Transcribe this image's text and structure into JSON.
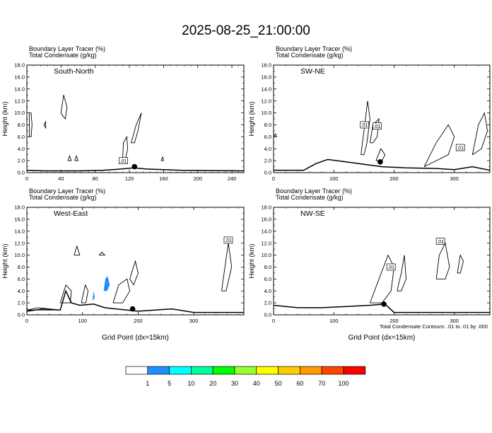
{
  "title": "2025-08-25_21:00:00",
  "footnote": "Total Condensate Contours: .01 to .01 by .000",
  "colorbar": {
    "colors": [
      "#ffffff",
      "#1e90ff",
      "#00ffff",
      "#00ff99",
      "#00ff00",
      "#99ff33",
      "#ffff00",
      "#ffcc00",
      "#ff9900",
      "#ff4500",
      "#ff0000"
    ],
    "labels": [
      "1",
      "5",
      "10",
      "20",
      "30",
      "40",
      "50",
      "60",
      "70",
      "100"
    ]
  },
  "chart_data": [
    {
      "type": "contour",
      "header1": "Boundary Layer Tracer   (%)",
      "header2": "Total Condensate   (g/kg)",
      "label": "South-North",
      "ylabel": "Height (km)",
      "xlabel": "",
      "xlim": [
        0,
        254
      ],
      "ylim": [
        0,
        18
      ],
      "xticks": [
        "0",
        "40",
        "80",
        "120",
        "160",
        "200",
        "240"
      ],
      "yticks": [
        "0.0",
        "2.0",
        "4.0",
        "6.0",
        "8.0",
        "10.0",
        "12.0",
        "14.0",
        "16.0",
        "18.0"
      ],
      "contour_labels": [
        {
          "text": ".01",
          "x": 113,
          "y": 2.0
        }
      ],
      "marker": {
        "x": 126,
        "y": 1.0
      },
      "terrain": [
        [
          0,
          0.4
        ],
        [
          20,
          0.3
        ],
        [
          60,
          0.3
        ],
        [
          90,
          0.4
        ],
        [
          110,
          0.6
        ],
        [
          125,
          0.8
        ],
        [
          140,
          0.6
        ],
        [
          180,
          0.4
        ],
        [
          254,
          0.3
        ]
      ],
      "contours": [
        [
          [
            3,
            6
          ],
          [
            3,
            10
          ],
          [
            5,
            10
          ],
          [
            6,
            8
          ],
          [
            5,
            6
          ],
          [
            3,
            6
          ]
        ],
        [
          [
            40,
            10
          ],
          [
            43,
            13
          ],
          [
            47,
            11
          ],
          [
            45,
            9
          ],
          [
            42,
            9.5
          ],
          [
            40,
            10
          ]
        ],
        [
          [
            20,
            8
          ],
          [
            22,
            8.5
          ],
          [
            22,
            7.5
          ],
          [
            20,
            8
          ]
        ],
        [
          [
            122,
            5
          ],
          [
            128,
            8
          ],
          [
            134,
            10
          ],
          [
            130,
            7
          ],
          [
            126,
            5
          ],
          [
            122,
            5
          ]
        ],
        [
          [
            112,
            2
          ],
          [
            113,
            5
          ],
          [
            117,
            6
          ],
          [
            118,
            4
          ],
          [
            115,
            2
          ],
          [
            112,
            2
          ]
        ],
        [
          [
            48,
            2
          ],
          [
            50,
            2.8
          ],
          [
            52,
            2
          ],
          [
            48,
            2
          ]
        ],
        [
          [
            56,
            2
          ],
          [
            58,
            2.8
          ],
          [
            60,
            2
          ],
          [
            56,
            2
          ]
        ],
        [
          [
            157,
            2
          ],
          [
            159,
            2.6
          ],
          [
            160,
            2
          ],
          [
            157,
            2
          ]
        ]
      ],
      "shaded": []
    },
    {
      "type": "contour",
      "header1": "Boundary Layer Tracer   (%)",
      "header2": "Total Condensate   (g/kg)",
      "label": "SW-NE",
      "ylabel": "Height (km)",
      "xlabel": "",
      "xlim": [
        0,
        359
      ],
      "ylim": [
        0,
        18
      ],
      "xticks": [
        "0",
        "100",
        "200",
        "300"
      ],
      "yticks": [
        "0.0",
        "2.0",
        "4.0",
        "6.0",
        "8.0",
        "10.0",
        "12.0",
        "14.0",
        "16.0",
        "18.0"
      ],
      "contour_labels": [
        {
          "text": ".01",
          "x": 172,
          "y": 7.8
        },
        {
          "text": ".01",
          "x": 151,
          "y": 8.0
        },
        {
          "text": ".01",
          "x": 310,
          "y": 4.2
        }
      ],
      "marker": {
        "x": 177,
        "y": 1.8
      },
      "terrain": [
        [
          0,
          0.4
        ],
        [
          50,
          0.4
        ],
        [
          70,
          1.5
        ],
        [
          90,
          2.2
        ],
        [
          120,
          1.8
        ],
        [
          150,
          1.4
        ],
        [
          180,
          1.0
        ],
        [
          220,
          0.8
        ],
        [
          270,
          0.7
        ],
        [
          300,
          0.5
        ],
        [
          330,
          1.0
        ],
        [
          359,
          0.4
        ]
      ],
      "contours": [
        [
          [
            145,
            3
          ],
          [
            150,
            7
          ],
          [
            156,
            12
          ],
          [
            160,
            9
          ],
          [
            155,
            5
          ],
          [
            150,
            3
          ],
          [
            145,
            3
          ]
        ],
        [
          [
            160,
            5
          ],
          [
            165,
            8
          ],
          [
            175,
            9
          ],
          [
            172,
            6
          ],
          [
            165,
            5
          ],
          [
            160,
            5
          ]
        ],
        [
          [
            170,
            2
          ],
          [
            178,
            4
          ],
          [
            185,
            3
          ],
          [
            180,
            2
          ],
          [
            170,
            2
          ]
        ],
        [
          [
            250,
            1
          ],
          [
            270,
            5
          ],
          [
            290,
            8
          ],
          [
            300,
            6
          ],
          [
            290,
            3
          ],
          [
            250,
            1
          ]
        ],
        [
          [
            330,
            3
          ],
          [
            340,
            8
          ],
          [
            350,
            10
          ],
          [
            355,
            7
          ],
          [
            345,
            4
          ],
          [
            330,
            3
          ]
        ],
        [
          [
            0,
            6
          ],
          [
            3,
            6.5
          ],
          [
            5,
            6
          ],
          [
            0,
            6
          ]
        ]
      ],
      "shaded": []
    },
    {
      "type": "contour",
      "header1": "Boundary Layer Tracer   (%)",
      "header2": "Total Condensate   (g/kg)",
      "label": "West-East",
      "ylabel": "Height (km)",
      "xlabel": "Grid Point  (dx=15km)",
      "xlim": [
        0,
        390
      ],
      "ylim": [
        0,
        18
      ],
      "xticks": [
        "0",
        "100",
        "200",
        "300"
      ],
      "yticks": [
        "0.0",
        "2.0",
        "4.0",
        "6.0",
        "8.0",
        "10.0",
        "12.0",
        "14.0",
        "16.0",
        "18.0"
      ],
      "contour_labels": [
        {
          "text": ".01",
          "x": 362,
          "y": 12.5
        }
      ],
      "marker": {
        "x": 190,
        "y": 1.0
      },
      "terrain": [
        [
          0,
          0.6
        ],
        [
          30,
          1.0
        ],
        [
          60,
          0.8
        ],
        [
          70,
          4.0
        ],
        [
          80,
          2.0
        ],
        [
          95,
          1.6
        ],
        [
          120,
          1.8
        ],
        [
          140,
          1.2
        ],
        [
          160,
          1.0
        ],
        [
          200,
          0.6
        ],
        [
          260,
          1.0
        ],
        [
          300,
          0.4
        ],
        [
          390,
          0.4
        ]
      ],
      "contours": [
        [
          [
            350,
            4
          ],
          [
            356,
            8
          ],
          [
            362,
            12
          ],
          [
            368,
            8
          ],
          [
            358,
            4
          ],
          [
            350,
            4
          ]
        ],
        [
          [
            60,
            2
          ],
          [
            70,
            5
          ],
          [
            80,
            4
          ],
          [
            78,
            2
          ],
          [
            60,
            2
          ]
        ],
        [
          [
            98,
            2
          ],
          [
            105,
            5
          ],
          [
            110,
            4
          ],
          [
            106,
            2
          ],
          [
            98,
            2
          ]
        ],
        [
          [
            155,
            2
          ],
          [
            165,
            5
          ],
          [
            180,
            6
          ],
          [
            185,
            4
          ],
          [
            172,
            2
          ],
          [
            155,
            2
          ]
        ],
        [
          [
            185,
            6
          ],
          [
            195,
            9
          ],
          [
            200,
            7
          ],
          [
            192,
            5
          ],
          [
            185,
            6
          ]
        ],
        [
          [
            85,
            10
          ],
          [
            90,
            11.5
          ],
          [
            95,
            10
          ],
          [
            85,
            10
          ]
        ],
        [
          [
            130,
            10
          ],
          [
            135,
            10.5
          ],
          [
            140,
            10
          ],
          [
            130,
            10
          ]
        ],
        [
          [
            0,
            0.8
          ],
          [
            20,
            1.2
          ],
          [
            40,
            1.0
          ],
          [
            60,
            0.8
          ],
          [
            0,
            0.8
          ]
        ]
      ],
      "shaded": [
        {
          "color": "#1e90ff",
          "points": [
            [
              118,
              2.5
            ],
            [
              120,
              4
            ],
            [
              122,
              3
            ],
            [
              120,
              2.5
            ],
            [
              118,
              2.5
            ]
          ]
        },
        {
          "color": "#1e90ff",
          "points": [
            [
              138,
              4
            ],
            [
              141,
              6
            ],
            [
              145,
              6.5
            ],
            [
              149,
              5
            ],
            [
              144,
              4
            ],
            [
              138,
              4
            ]
          ]
        }
      ]
    },
    {
      "type": "contour",
      "header1": "Boundary Layer Tracer   (%)",
      "header2": "Total Condensate   (g/kg)",
      "label": "NW-SE",
      "ylabel": "Height (km)",
      "xlabel": "Grid Point  (dx=15km)",
      "xlim": [
        0,
        359
      ],
      "ylim": [
        0,
        18
      ],
      "xticks": [
        "0",
        "100",
        "200",
        "300"
      ],
      "yticks": [
        "0.0",
        "2.0",
        "4.0",
        "6.0",
        "8.0",
        "10.0",
        "12.0",
        "14.0",
        "16.0",
        "18.0"
      ],
      "contour_labels": [
        {
          "text": ".01",
          "x": 195,
          "y": 8.0
        },
        {
          "text": ".01",
          "x": 277,
          "y": 12.3
        }
      ],
      "marker": {
        "x": 183,
        "y": 1.8
      },
      "terrain": [
        [
          0,
          1.6
        ],
        [
          40,
          1.2
        ],
        [
          80,
          1.2
        ],
        [
          120,
          1.4
        ],
        [
          160,
          1.6
        ],
        [
          185,
          1.8
        ],
        [
          200,
          0.4
        ],
        [
          359,
          0.4
        ]
      ],
      "contours": [
        [
          [
            160,
            2
          ],
          [
            175,
            6
          ],
          [
            190,
            10
          ],
          [
            200,
            8
          ],
          [
            195,
            4
          ],
          [
            180,
            2
          ],
          [
            160,
            2
          ]
        ],
        [
          [
            270,
            6
          ],
          [
            275,
            10
          ],
          [
            285,
            12
          ],
          [
            292,
            8
          ],
          [
            285,
            6
          ],
          [
            270,
            6
          ]
        ],
        [
          [
            305,
            7
          ],
          [
            310,
            10
          ],
          [
            315,
            9
          ],
          [
            310,
            7
          ],
          [
            305,
            7
          ]
        ],
        [
          [
            205,
            4
          ],
          [
            212,
            7
          ],
          [
            217,
            10
          ],
          [
            220,
            6
          ],
          [
            212,
            4
          ],
          [
            205,
            4
          ]
        ]
      ],
      "shaded": []
    }
  ]
}
